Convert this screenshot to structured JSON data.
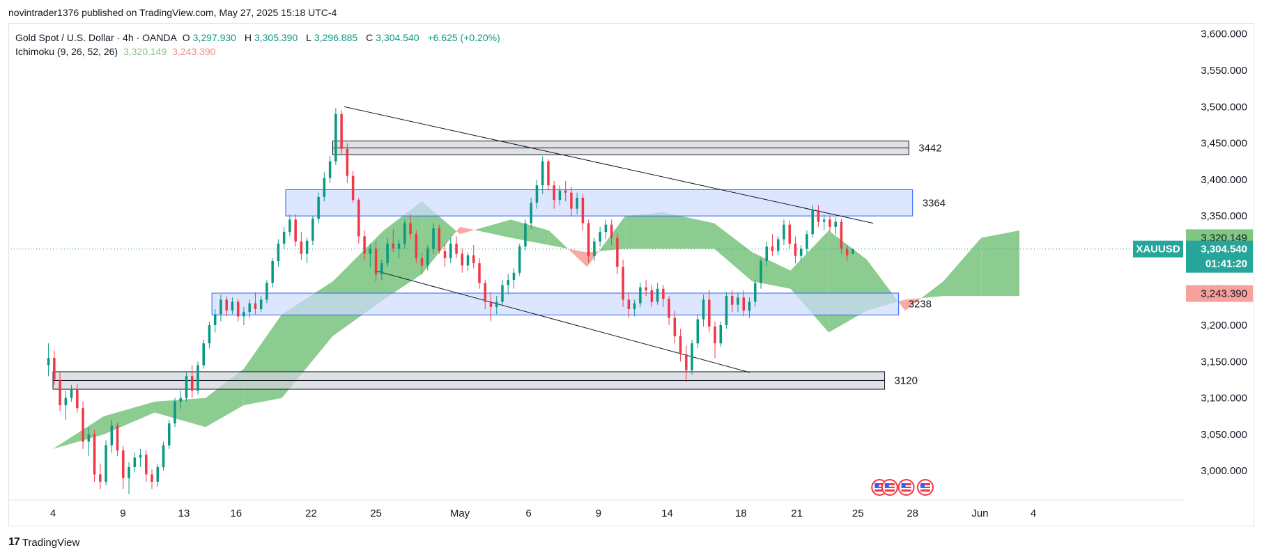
{
  "header": {
    "published": "novintrader1376 published on TradingView.com, May 27, 2025 15:18 UTC-4"
  },
  "legend": {
    "symbol": "Gold Spot / U.S. Dollar · 4h · OANDA",
    "open_label": "O",
    "open": "3,297.930",
    "high_label": "H",
    "high": "3,305.390",
    "low_label": "L",
    "low": "3,296.885",
    "close_label": "C",
    "close": "3,304.540",
    "change": "+6.625 (+0.20%)",
    "indicator": "Ichimoku (9, 26, 52, 26)",
    "ind_value1": "3,320.149",
    "ind_value2": "3,243.390"
  },
  "footer": {
    "brand": "TradingView",
    "logo": "17"
  },
  "colors": {
    "up": "#089981",
    "down": "#f23645",
    "green_text": "#089981",
    "cloud_green": "#81c784",
    "cloud_red": "#f7a19a",
    "zone_blue": "#cfdcff",
    "zone_gray": "#d1d4dc"
  },
  "chart_data": {
    "type": "candlestick",
    "symbol": "XAUUSD",
    "timeframe": "4h",
    "y_axis": {
      "ylim": [
        2960,
        3615
      ],
      "ticks": [
        3000,
        3050,
        3100,
        3150,
        3200,
        3250,
        3300,
        3350,
        3400,
        3450,
        3500,
        3550,
        3600
      ],
      "tick_labels": [
        "3,000.000",
        "3,050.000",
        "3,100.000",
        "3,150.000",
        "3,200.000",
        "3,250.000",
        "3,300.000",
        "3,350.000",
        "3,400.000",
        "3,450.000",
        "3,500.000",
        "3,550.000",
        "3,600.000"
      ]
    },
    "x_axis": {
      "ticks": [
        {
          "label": "4",
          "d": 0
        },
        {
          "label": "9",
          "d": 5.5
        },
        {
          "label": "13",
          "d": 10.3
        },
        {
          "label": "16",
          "d": 14.4
        },
        {
          "label": "22",
          "d": 20.3
        },
        {
          "label": "25",
          "d": 25.4
        },
        {
          "label": "May",
          "d": 32
        },
        {
          "label": "6",
          "d": 37.4
        },
        {
          "label": "9",
          "d": 42.9
        },
        {
          "label": "14",
          "d": 48.3
        },
        {
          "label": "18",
          "d": 54.1
        },
        {
          "label": "21",
          "d": 58.5
        },
        {
          "label": "25",
          "d": 63.3
        },
        {
          "label": "28",
          "d": 67.6
        },
        {
          "label": "Jun",
          "d": 72.9
        },
        {
          "label": "4",
          "d": 77.1
        }
      ]
    },
    "price_labels": [
      {
        "text": "3,320.149",
        "value": 3320.149,
        "color": "#81c784",
        "text_color": "#131722"
      },
      {
        "text": "3,304.540",
        "value": 3304.54,
        "color": "#26a69a",
        "text_color": "#ffffff",
        "sub": "01:41:20"
      },
      {
        "text": "3,243.390",
        "value": 3243.39,
        "color": "#f7a19a",
        "text_color": "#131722"
      }
    ],
    "current_price": 3304.54,
    "symbol_tag": "XAUUSD",
    "zones": [
      {
        "label": "3442",
        "color": "gray",
        "top": 3453,
        "bottom": 3434,
        "d0": 22.0,
        "d1": 67.3
      },
      {
        "label": "3364",
        "color": "blue",
        "top": 3386,
        "bottom": 3350,
        "d0": 18.3,
        "d1": 67.6
      },
      {
        "label": "3238",
        "color": "blue",
        "top": 3244,
        "bottom": 3214,
        "d0": 12.5,
        "d1": 66.5
      },
      {
        "label": "3120",
        "color": "gray",
        "top": 3136,
        "bottom": 3112,
        "d0": 0,
        "d1": 65.4
      }
    ],
    "trendlines": [
      {
        "d0": 22.9,
        "v0": 3500,
        "d1": 64.5,
        "v1": 3340
      },
      {
        "d0": 25.3,
        "v0": 3275,
        "d1": 54.8,
        "v1": 3135
      }
    ],
    "candles": [
      [
        3145,
        3175,
        3130,
        3155
      ],
      [
        3155,
        3165,
        3118,
        3125
      ],
      [
        3125,
        3135,
        3082,
        3090
      ],
      [
        3090,
        3110,
        3070,
        3100
      ],
      [
        3100,
        3118,
        3095,
        3112
      ],
      [
        3112,
        3120,
        3080,
        3086
      ],
      [
        3086,
        3095,
        3030,
        3040
      ],
      [
        3040,
        3060,
        3020,
        3050
      ],
      [
        3050,
        3056,
        2985,
        2995
      ],
      [
        2995,
        3010,
        2975,
        2985
      ],
      [
        2985,
        3042,
        2980,
        3035
      ],
      [
        3035,
        3070,
        3025,
        3062
      ],
      [
        3062,
        3066,
        3020,
        3028
      ],
      [
        3028,
        3034,
        2975,
        2990
      ],
      [
        2990,
        3012,
        2968,
        3005
      ],
      [
        3005,
        3025,
        2998,
        3018
      ],
      [
        3018,
        3030,
        3005,
        3022
      ],
      [
        3022,
        3028,
        2985,
        2995
      ],
      [
        2995,
        3002,
        2975,
        2985
      ],
      [
        2985,
        3010,
        2978,
        3005
      ],
      [
        3005,
        3040,
        3000,
        3035
      ],
      [
        3035,
        3070,
        3030,
        3065
      ],
      [
        3065,
        3100,
        3060,
        3095
      ],
      [
        3095,
        3110,
        3085,
        3100
      ],
      [
        3100,
        3135,
        3095,
        3130
      ],
      [
        3130,
        3145,
        3100,
        3110
      ],
      [
        3110,
        3150,
        3105,
        3145
      ],
      [
        3145,
        3180,
        3140,
        3175
      ],
      [
        3175,
        3205,
        3168,
        3200
      ],
      [
        3200,
        3222,
        3190,
        3215
      ],
      [
        3215,
        3242,
        3205,
        3235
      ],
      [
        3235,
        3240,
        3212,
        3220
      ],
      [
        3220,
        3238,
        3215,
        3232
      ],
      [
        3232,
        3236,
        3205,
        3212
      ],
      [
        3212,
        3225,
        3200,
        3218
      ],
      [
        3218,
        3235,
        3210,
        3230
      ],
      [
        3230,
        3245,
        3215,
        3222
      ],
      [
        3222,
        3240,
        3218,
        3235
      ],
      [
        3235,
        3262,
        3230,
        3258
      ],
      [
        3258,
        3292,
        3252,
        3288
      ],
      [
        3288,
        3318,
        3280,
        3312
      ],
      [
        3312,
        3335,
        3305,
        3328
      ],
      [
        3328,
        3352,
        3322,
        3345
      ],
      [
        3345,
        3352,
        3308,
        3315
      ],
      [
        3315,
        3328,
        3290,
        3298
      ],
      [
        3298,
        3320,
        3285,
        3316
      ],
      [
        3316,
        3350,
        3310,
        3346
      ],
      [
        3346,
        3382,
        3340,
        3376
      ],
      [
        3376,
        3410,
        3370,
        3402
      ],
      [
        3402,
        3432,
        3395,
        3425
      ],
      [
        3425,
        3498,
        3420,
        3490
      ],
      [
        3490,
        3495,
        3435,
        3442
      ],
      [
        3442,
        3450,
        3395,
        3405
      ],
      [
        3405,
        3412,
        3368,
        3372
      ],
      [
        3372,
        3375,
        3312,
        3322
      ],
      [
        3322,
        3330,
        3290,
        3298
      ],
      [
        3298,
        3312,
        3280,
        3305
      ],
      [
        3305,
        3315,
        3260,
        3270
      ],
      [
        3270,
        3290,
        3262,
        3285
      ],
      [
        3285,
        3320,
        3280,
        3312
      ],
      [
        3312,
        3332,
        3300,
        3305
      ],
      [
        3305,
        3318,
        3292,
        3312
      ],
      [
        3312,
        3345,
        3305,
        3340
      ],
      [
        3340,
        3352,
        3318,
        3325
      ],
      [
        3325,
        3330,
        3285,
        3292
      ],
      [
        3292,
        3300,
        3270,
        3282
      ],
      [
        3282,
        3310,
        3275,
        3305
      ],
      [
        3305,
        3340,
        3298,
        3333
      ],
      [
        3333,
        3338,
        3298,
        3302
      ],
      [
        3302,
        3312,
        3280,
        3292
      ],
      [
        3292,
        3320,
        3285,
        3312
      ],
      [
        3312,
        3322,
        3292,
        3298
      ],
      [
        3298,
        3305,
        3272,
        3282
      ],
      [
        3282,
        3300,
        3275,
        3296
      ],
      [
        3296,
        3310,
        3278,
        3285
      ],
      [
        3285,
        3292,
        3250,
        3258
      ],
      [
        3258,
        3262,
        3222,
        3232
      ],
      [
        3232,
        3245,
        3205,
        3225
      ],
      [
        3225,
        3240,
        3215,
        3232
      ],
      [
        3232,
        3262,
        3228,
        3255
      ],
      [
        3255,
        3270,
        3242,
        3262
      ],
      [
        3262,
        3278,
        3250,
        3272
      ],
      [
        3272,
        3312,
        3268,
        3308
      ],
      [
        3308,
        3345,
        3302,
        3340
      ],
      [
        3340,
        3375,
        3332,
        3368
      ],
      [
        3368,
        3400,
        3360,
        3392
      ],
      [
        3392,
        3432,
        3380,
        3425
      ],
      [
        3425,
        3428,
        3385,
        3392
      ],
      [
        3392,
        3398,
        3360,
        3372
      ],
      [
        3372,
        3392,
        3365,
        3385
      ],
      [
        3385,
        3398,
        3370,
        3382
      ],
      [
        3382,
        3390,
        3350,
        3360
      ],
      [
        3360,
        3382,
        3352,
        3375
      ],
      [
        3375,
        3380,
        3330,
        3340
      ],
      [
        3340,
        3345,
        3285,
        3295
      ],
      [
        3295,
        3320,
        3288,
        3315
      ],
      [
        3315,
        3335,
        3308,
        3328
      ],
      [
        3328,
        3345,
        3318,
        3338
      ],
      [
        3338,
        3345,
        3310,
        3320
      ],
      [
        3320,
        3326,
        3270,
        3280
      ],
      [
        3280,
        3290,
        3225,
        3235
      ],
      [
        3235,
        3245,
        3210,
        3222
      ],
      [
        3222,
        3235,
        3212,
        3230
      ],
      [
        3230,
        3258,
        3225,
        3252
      ],
      [
        3252,
        3262,
        3240,
        3248
      ],
      [
        3248,
        3255,
        3225,
        3232
      ],
      [
        3232,
        3258,
        3228,
        3250
      ],
      [
        3250,
        3255,
        3225,
        3236
      ],
      [
        3236,
        3240,
        3200,
        3210
      ],
      [
        3210,
        3220,
        3175,
        3185
      ],
      [
        3185,
        3195,
        3150,
        3160
      ],
      [
        3160,
        3172,
        3122,
        3138
      ],
      [
        3138,
        3180,
        3132,
        3175
      ],
      [
        3175,
        3215,
        3168,
        3208
      ],
      [
        3208,
        3242,
        3198,
        3235
      ],
      [
        3235,
        3248,
        3190,
        3198
      ],
      [
        3198,
        3205,
        3155,
        3175
      ],
      [
        3175,
        3205,
        3170,
        3200
      ],
      [
        3200,
        3245,
        3195,
        3240
      ],
      [
        3240,
        3248,
        3218,
        3228
      ],
      [
        3228,
        3245,
        3218,
        3238
      ],
      [
        3238,
        3248,
        3212,
        3220
      ],
      [
        3220,
        3238,
        3210,
        3232
      ],
      [
        3232,
        3262,
        3225,
        3258
      ],
      [
        3258,
        3292,
        3250,
        3288
      ],
      [
        3288,
        3315,
        3282,
        3308
      ],
      [
        3308,
        3325,
        3295,
        3302
      ],
      [
        3302,
        3322,
        3296,
        3318
      ],
      [
        3318,
        3345,
        3310,
        3338
      ],
      [
        3338,
        3344,
        3305,
        3312
      ],
      [
        3312,
        3322,
        3285,
        3295
      ],
      [
        3295,
        3310,
        3288,
        3305
      ],
      [
        3305,
        3330,
        3298,
        3325
      ],
      [
        3325,
        3365,
        3320,
        3358
      ],
      [
        3358,
        3365,
        3335,
        3342
      ],
      [
        3342,
        3352,
        3330,
        3345
      ],
      [
        3345,
        3350,
        3328,
        3335
      ],
      [
        3335,
        3348,
        3325,
        3342
      ],
      [
        3342,
        3346,
        3298,
        3305
      ],
      [
        3305,
        3310,
        3288,
        3296
      ],
      [
        3297.93,
        3305.39,
        3296.885,
        3304.54
      ]
    ],
    "cloud": {
      "senkou_a": [
        [
          0,
          3030
        ],
        [
          4,
          3075
        ],
        [
          8,
          3095
        ],
        [
          12,
          3100
        ],
        [
          15,
          3140
        ],
        [
          18,
          3215
        ],
        [
          22,
          3260
        ],
        [
          26,
          3330
        ],
        [
          29,
          3370
        ],
        [
          32,
          3325
        ],
        [
          36,
          3345
        ],
        [
          39,
          3330
        ],
        [
          42,
          3280
        ],
        [
          45,
          3350
        ],
        [
          48,
          3355
        ],
        [
          52,
          3340
        ],
        [
          55,
          3300
        ],
        [
          58,
          3275
        ],
        [
          61,
          3330
        ],
        [
          64,
          3290
        ],
        [
          67,
          3220
        ],
        [
          70,
          3260
        ],
        [
          73,
          3320
        ],
        [
          76,
          3330
        ]
      ],
      "senkou_b": [
        [
          0,
          3030
        ],
        [
          4,
          3050
        ],
        [
          8,
          3080
        ],
        [
          12,
          3060
        ],
        [
          15,
          3090
        ],
        [
          18,
          3100
        ],
        [
          22,
          3185
        ],
        [
          26,
          3235
        ],
        [
          29,
          3270
        ],
        [
          32,
          3335
        ],
        [
          36,
          3320
        ],
        [
          39,
          3310
        ],
        [
          42,
          3300
        ],
        [
          45,
          3305
        ],
        [
          48,
          3305
        ],
        [
          52,
          3305
        ],
        [
          55,
          3260
        ],
        [
          58,
          3250
        ],
        [
          61,
          3190
        ],
        [
          64,
          3220
        ],
        [
          67,
          3235
        ],
        [
          70,
          3240
        ],
        [
          73,
          3240
        ],
        [
          76,
          3240
        ]
      ]
    },
    "event_icons": [
      65.0,
      65.8,
      67.1,
      68.6
    ]
  }
}
